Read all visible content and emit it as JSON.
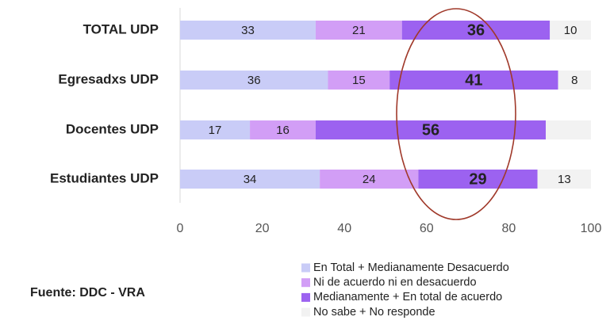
{
  "chart_data": {
    "type": "bar",
    "orientation": "horizontal",
    "stacked": true,
    "categories": [
      "TOTAL UDP",
      "Egresadxs UDP",
      "Docentes UDP",
      "Estudiantes UDP"
    ],
    "series": [
      {
        "name": "En Total + Medianamente Desacuerdo",
        "color": "#c9ccf7",
        "values": [
          33,
          36,
          17,
          34
        ]
      },
      {
        "name": "Ni de acuerdo ni en desacuerdo",
        "color": "#d29ef6",
        "values": [
          21,
          15,
          16,
          24
        ]
      },
      {
        "name": "Medianamente + En total de acuerdo",
        "color": "#9c62f0",
        "values": [
          36,
          41,
          56,
          29
        ],
        "bold_labels": true
      },
      {
        "name": "No sabe + No responde",
        "color": "#f2f2f2",
        "values": [
          10,
          8,
          11,
          13
        ],
        "value_labels": [
          "10",
          "8",
          null,
          "13"
        ]
      }
    ],
    "xlim": [
      0,
      100
    ],
    "xticks": [
      0,
      20,
      40,
      60,
      80,
      100
    ],
    "source": "Fuente:  DDC - VRA"
  }
}
